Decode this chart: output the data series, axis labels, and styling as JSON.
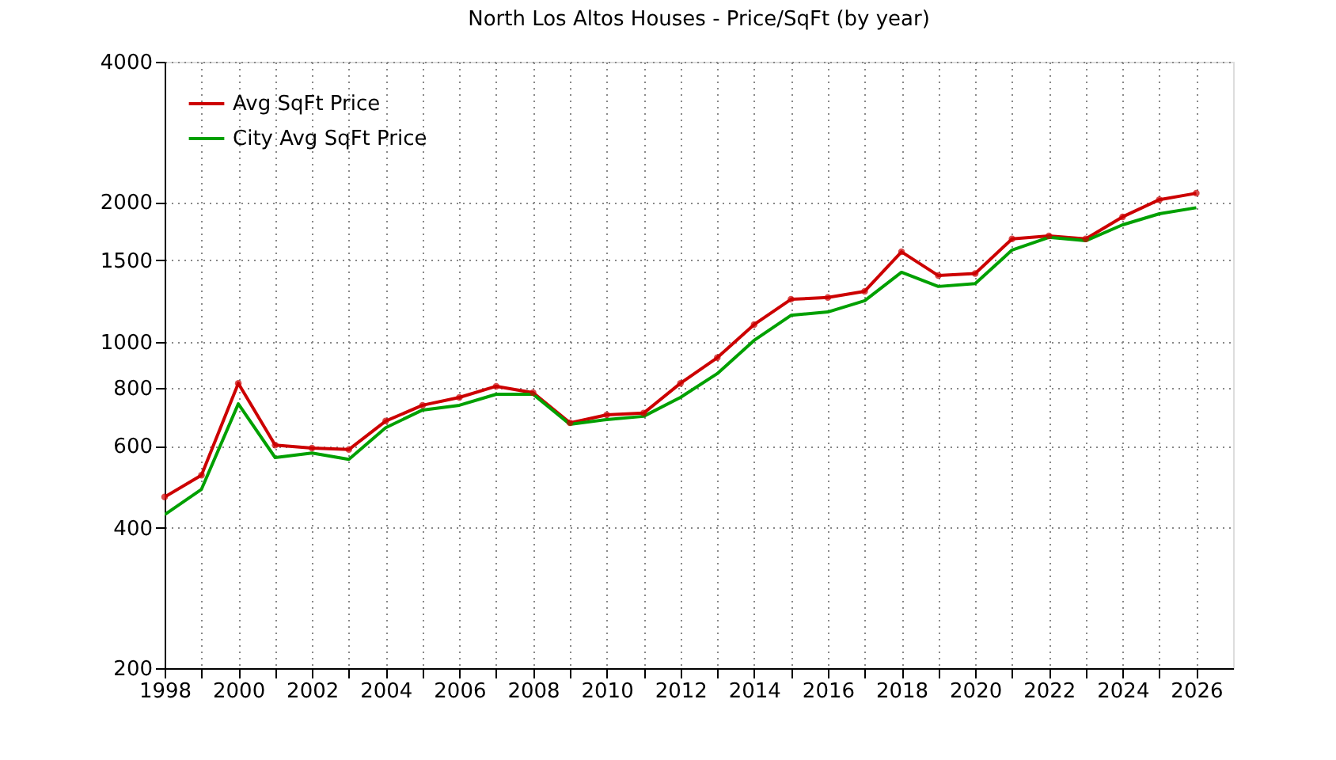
{
  "chart_data": {
    "type": "line",
    "title": "North Los Altos Houses - Price/SqFt (by year)",
    "x": [
      1998,
      1999,
      2000,
      2001,
      2002,
      2003,
      2004,
      2005,
      2006,
      2007,
      2008,
      2009,
      2010,
      2011,
      2012,
      2013,
      2014,
      2015,
      2016,
      2017,
      2018,
      2019,
      2020,
      2021,
      2022,
      2023,
      2024,
      2025,
      2026
    ],
    "series": [
      {
        "name": "Avg SqFt Price",
        "color": "#cc0000",
        "marker": "circle",
        "values": [
          466,
          519,
          817,
          602,
          593,
          589,
          678,
          733,
          762,
          805,
          780,
          672,
          699,
          705,
          817,
          927,
          1092,
          1237,
          1248,
          1287,
          1564,
          1391,
          1405,
          1667,
          1692,
          1667,
          1859,
          2024,
          2089
        ]
      },
      {
        "name": "City Avg SqFt Price",
        "color": "#00a000",
        "values": [
          427,
          484,
          738,
          566,
          579,
          561,
          656,
          716,
          733,
          774,
          774,
          667,
          683,
          694,
          762,
          857,
          1010,
          1143,
          1162,
          1228,
          1414,
          1318,
          1337,
          1578,
          1680,
          1652,
          1787,
          1888,
          1945
        ]
      }
    ],
    "xlim": [
      1998,
      2027
    ],
    "xticks": [
      1998,
      {
        "value": 1999,
        "label": null
      },
      2000,
      {
        "value": 2001,
        "label": null
      },
      2002,
      {
        "value": 2003,
        "label": null
      },
      2004,
      {
        "value": 2005,
        "label": null
      },
      2006,
      {
        "value": 2007,
        "label": null
      },
      2008,
      {
        "value": 2009,
        "label": null
      },
      2010,
      {
        "value": 2011,
        "label": null
      },
      2012,
      {
        "value": 2013,
        "label": null
      },
      2014,
      {
        "value": 2015,
        "label": null
      },
      2016,
      {
        "value": 2017,
        "label": null
      },
      2018,
      {
        "value": 2019,
        "label": null
      },
      2020,
      {
        "value": 2021,
        "label": null
      },
      2022,
      {
        "value": 2023,
        "label": null
      },
      2024,
      {
        "value": 2025,
        "label": null
      },
      2026
    ],
    "ylim": [
      200,
      4000
    ],
    "yticks": [
      200,
      400,
      600,
      800,
      1000,
      1500,
      2000,
      4000
    ],
    "log": "y",
    "grid": true,
    "legend": "top left",
    "line_style": "solid"
  }
}
